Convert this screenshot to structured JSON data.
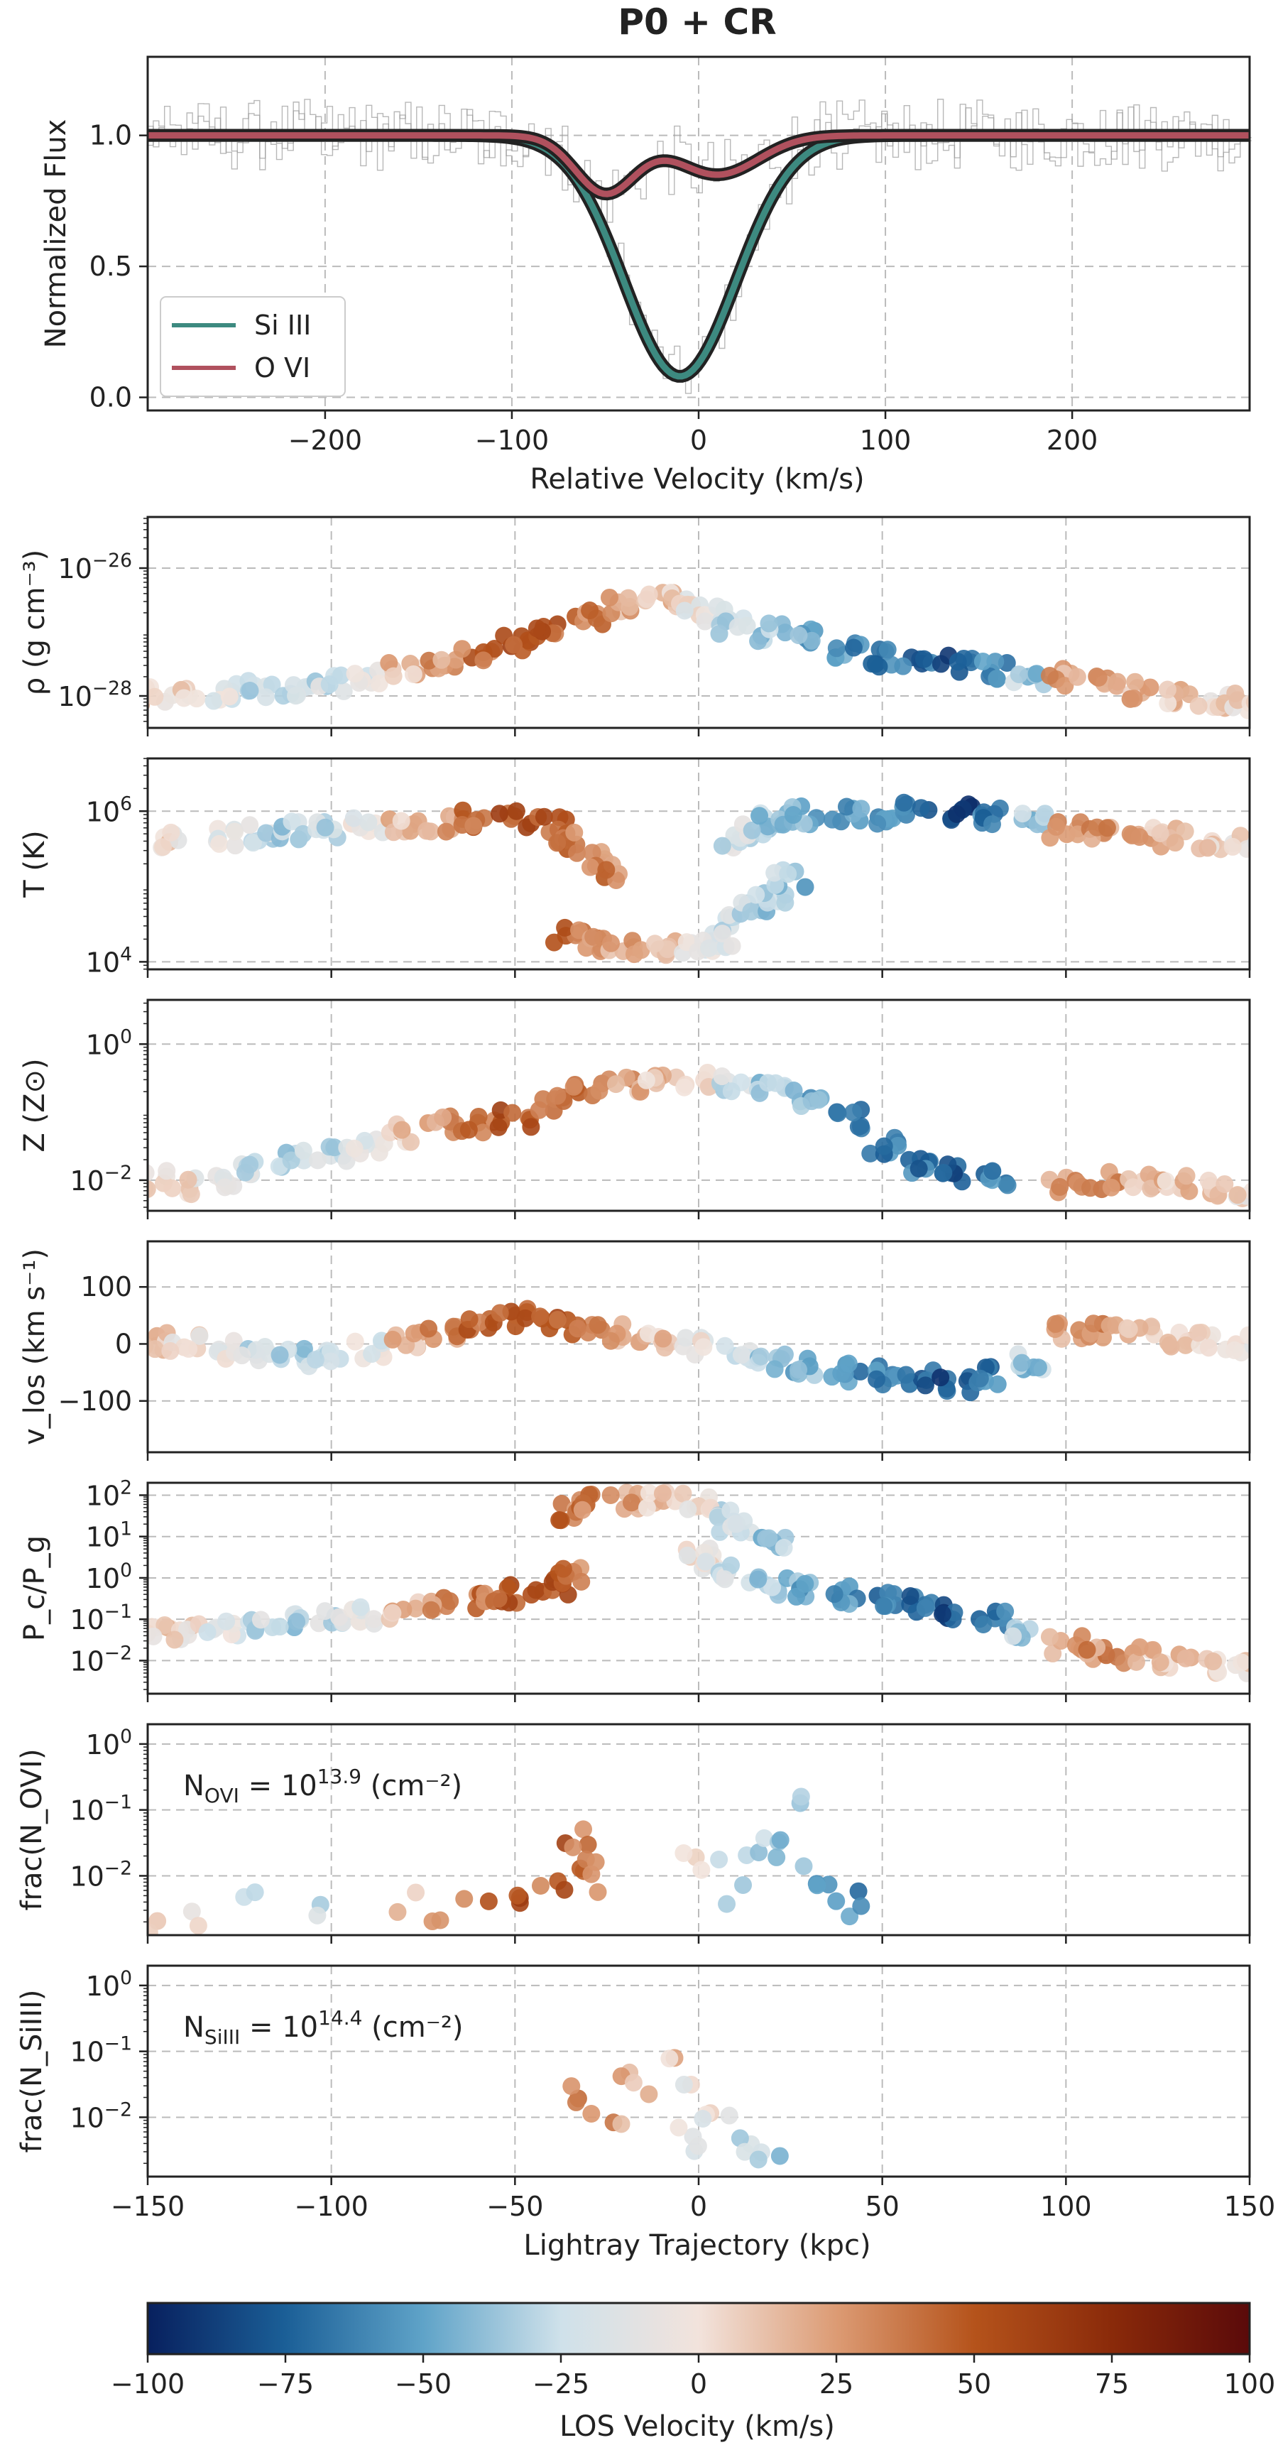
{
  "title": "P0 + CR",
  "colors": {
    "frame": "#222222",
    "grid": "#bbbbbb",
    "si_line": "#3d8a80",
    "o_line": "#b0515e",
    "data_hist": "#9a9a9a"
  },
  "chart_data": [
    {
      "id": "spectrum",
      "type": "line",
      "xlabel": "Relative Velocity (km/s)",
      "ylabel": "Normalized Flux",
      "xlim": [
        -295,
        295
      ],
      "ylim": [
        -0.05,
        1.3
      ],
      "xticks": [
        -200,
        -100,
        0,
        100,
        200
      ],
      "xtick_labels": [
        "−200",
        "−100",
        "0",
        "100",
        "200"
      ],
      "yticks": [
        0.0,
        0.5,
        1.0
      ],
      "ytick_labels": [
        "0.0",
        "0.5",
        "1.0"
      ],
      "legend": {
        "placement": "lower-left",
        "entries": [
          "Si III",
          "O VI"
        ]
      },
      "series": [
        {
          "name": "Si III",
          "color": "#3d8a80",
          "components": [
            {
              "center": -10,
              "depth": 0.92,
              "sigma": 30
            }
          ]
        },
        {
          "name": "O VI",
          "color": "#b0515e",
          "components": [
            {
              "center": -50,
              "depth": 0.22,
              "sigma": 16
            },
            {
              "center": 10,
              "depth": 0.15,
              "sigma": 22
            }
          ]
        }
      ]
    },
    {
      "id": "density",
      "type": "scatter",
      "scale": "log",
      "ylabel": "ρ (g cm⁻³)",
      "ylim_log": [
        -28.5,
        -25.2
      ],
      "yticks_log": [
        -28,
        -26
      ],
      "ytick_labels": [
        {
          "base": "10",
          "exp": "−28"
        },
        {
          "base": "10",
          "exp": "−26"
        }
      ],
      "points": [
        [
          -148,
          -28
        ],
        [
          -140,
          -28
        ],
        [
          -130,
          -27.95
        ],
        [
          -120,
          -27.9
        ],
        [
          -110,
          -27.85
        ],
        [
          -100,
          -27.8
        ],
        [
          -90,
          -27.7
        ],
        [
          -80,
          -27.6
        ],
        [
          -70,
          -27.5
        ],
        [
          -60,
          -27.4
        ],
        [
          -50,
          -27.2
        ],
        [
          -40,
          -27
        ],
        [
          -30,
          -26.8
        ],
        [
          -20,
          -26.6
        ],
        [
          -10,
          -26.5
        ],
        [
          -5,
          -26.5
        ],
        [
          0,
          -26.6
        ],
        [
          5,
          -26.7
        ],
        [
          10,
          -26.9
        ],
        [
          20,
          -27
        ],
        [
          30,
          -27.1
        ],
        [
          40,
          -27.3
        ],
        [
          50,
          -27.4
        ],
        [
          60,
          -27.4
        ],
        [
          70,
          -27.5
        ],
        [
          80,
          -27.6
        ],
        [
          90,
          -27.7
        ],
        [
          100,
          -27.7
        ],
        [
          110,
          -27.8
        ],
        [
          120,
          -27.9
        ],
        [
          130,
          -28
        ],
        [
          140,
          -28.05
        ],
        [
          148,
          -28.1
        ]
      ]
    },
    {
      "id": "temperature",
      "type": "scatter",
      "scale": "log",
      "ylabel": "T (K)",
      "ylim_log": [
        3.9,
        6.7
      ],
      "yticks_log": [
        4,
        6
      ],
      "ytick_labels": [
        {
          "base": "10",
          "exp": "4"
        },
        {
          "base": "10",
          "exp": "6"
        }
      ],
      "points": [
        [
          -145,
          5.6
        ],
        [
          -130,
          5.65
        ],
        [
          -120,
          5.7
        ],
        [
          -110,
          5.75
        ],
        [
          -100,
          5.75
        ],
        [
          -90,
          5.8
        ],
        [
          -80,
          5.8
        ],
        [
          -70,
          5.85
        ],
        [
          -60,
          5.9
        ],
        [
          -50,
          5.9
        ],
        [
          -40,
          5.8
        ],
        [
          -35,
          5.6
        ],
        [
          -30,
          5.4
        ],
        [
          -25,
          5.2
        ],
        [
          -35,
          4.35
        ],
        [
          -30,
          4.25
        ],
        [
          -20,
          4.2
        ],
        [
          -10,
          4.15
        ],
        [
          0,
          4.2
        ],
        [
          5,
          4.25
        ],
        [
          10,
          4.5
        ],
        [
          15,
          4.7
        ],
        [
          20,
          4.9
        ],
        [
          25,
          5.1
        ],
        [
          10,
          5.6
        ],
        [
          15,
          5.8
        ],
        [
          20,
          5.9
        ],
        [
          30,
          5.95
        ],
        [
          40,
          5.95
        ],
        [
          50,
          5.95
        ],
        [
          60,
          6
        ],
        [
          70,
          6
        ],
        [
          80,
          5.95
        ],
        [
          90,
          5.9
        ],
        [
          100,
          5.75
        ],
        [
          110,
          5.7
        ],
        [
          120,
          5.7
        ],
        [
          130,
          5.65
        ],
        [
          140,
          5.6
        ],
        [
          148,
          5.55
        ]
      ]
    },
    {
      "id": "metallicity",
      "type": "scatter",
      "scale": "log",
      "ylabel": "Z (Z⊙)",
      "ylim_log": [
        -2.45,
        0.65
      ],
      "yticks_log": [
        -2,
        0
      ],
      "ytick_labels": [
        {
          "base": "10",
          "exp": "−2"
        },
        {
          "base": "10",
          "exp": "0"
        }
      ],
      "points": [
        [
          -148,
          -2
        ],
        [
          -140,
          -2.1
        ],
        [
          -130,
          -2
        ],
        [
          -120,
          -1.8
        ],
        [
          -110,
          -1.7
        ],
        [
          -100,
          -1.6
        ],
        [
          -90,
          -1.5
        ],
        [
          -80,
          -1.3
        ],
        [
          -70,
          -1.2
        ],
        [
          -60,
          -1.2
        ],
        [
          -50,
          -1.1
        ],
        [
          -40,
          -0.9
        ],
        [
          -30,
          -0.7
        ],
        [
          -20,
          -0.6
        ],
        [
          -10,
          -0.5
        ],
        [
          0,
          -0.5
        ],
        [
          10,
          -0.6
        ],
        [
          20,
          -0.7
        ],
        [
          30,
          -0.8
        ],
        [
          40,
          -1.1
        ],
        [
          50,
          -1.5
        ],
        [
          60,
          -1.8
        ],
        [
          70,
          -1.9
        ],
        [
          80,
          -2
        ],
        [
          100,
          -2.1
        ],
        [
          110,
          -2
        ],
        [
          120,
          -2
        ],
        [
          130,
          -2.05
        ],
        [
          140,
          -2.1
        ],
        [
          148,
          -2.2
        ]
      ]
    },
    {
      "id": "vlos",
      "type": "scatter",
      "scale": "linear",
      "ylabel": "v_los (km s⁻¹)",
      "ylim": [
        -190,
        180
      ],
      "yticks": [
        -100,
        0,
        100
      ],
      "ytick_labels": [
        "−100",
        "0",
        "100"
      ],
      "points": [
        [
          -148,
          5
        ],
        [
          -140,
          0
        ],
        [
          -130,
          -10
        ],
        [
          -120,
          -20
        ],
        [
          -110,
          -25
        ],
        [
          -100,
          -20
        ],
        [
          -90,
          -10
        ],
        [
          -80,
          10
        ],
        [
          -70,
          25
        ],
        [
          -60,
          35
        ],
        [
          -50,
          45
        ],
        [
          -40,
          40
        ],
        [
          -30,
          30
        ],
        [
          -20,
          20
        ],
        [
          -10,
          10
        ],
        [
          0,
          -5
        ],
        [
          10,
          -20
        ],
        [
          20,
          -30
        ],
        [
          30,
          -40
        ],
        [
          40,
          -50
        ],
        [
          50,
          -55
        ],
        [
          60,
          -60
        ],
        [
          70,
          -70
        ],
        [
          80,
          -55
        ],
        [
          90,
          -30
        ],
        [
          100,
          20
        ],
        [
          110,
          25
        ],
        [
          120,
          15
        ],
        [
          130,
          10
        ],
        [
          140,
          5
        ],
        [
          148,
          0
        ]
      ]
    },
    {
      "id": "pressure_ratio",
      "type": "scatter",
      "scale": "log",
      "ylabel": "P_c/P_g",
      "ylim_log": [
        -2.8,
        2.3
      ],
      "yticks_log": [
        -2,
        -1,
        0,
        1,
        2
      ],
      "ytick_labels": [
        {
          "base": "10",
          "exp": "−2"
        },
        {
          "base": "10",
          "exp": "−1"
        },
        {
          "base": "10",
          "exp": "0"
        },
        {
          "base": "10",
          "exp": "1"
        },
        {
          "base": "10",
          "exp": "2"
        }
      ],
      "points": [
        [
          -148,
          -1.3
        ],
        [
          -140,
          -1.3
        ],
        [
          -130,
          -1.25
        ],
        [
          -120,
          -1.2
        ],
        [
          -110,
          -1.1
        ],
        [
          -100,
          -1
        ],
        [
          -90,
          -0.9
        ],
        [
          -80,
          -0.8
        ],
        [
          -70,
          -0.7
        ],
        [
          -60,
          -0.6
        ],
        [
          -50,
          -0.4
        ],
        [
          -40,
          -0.2
        ],
        [
          -35,
          0.1
        ],
        [
          -35,
          1.6
        ],
        [
          -30,
          1.8
        ],
        [
          -20,
          1.85
        ],
        [
          -10,
          1.9
        ],
        [
          0,
          1.85
        ],
        [
          5,
          1.5
        ],
        [
          10,
          1.2
        ],
        [
          20,
          0.9
        ],
        [
          0,
          0.5
        ],
        [
          5,
          0.2
        ],
        [
          10,
          0.1
        ],
        [
          20,
          -0.2
        ],
        [
          30,
          -0.3
        ],
        [
          40,
          -0.4
        ],
        [
          50,
          -0.5
        ],
        [
          60,
          -0.6
        ],
        [
          70,
          -0.8
        ],
        [
          80,
          -1
        ],
        [
          90,
          -1.3
        ],
        [
          100,
          -1.6
        ],
        [
          110,
          -1.8
        ],
        [
          120,
          -1.9
        ],
        [
          130,
          -2
        ],
        [
          140,
          -2.1
        ],
        [
          148,
          -2.2
        ]
      ]
    },
    {
      "id": "frac_ovi",
      "type": "scatter",
      "scale": "log",
      "ylabel": "frac(N_OVI)",
      "ylim_log": [
        -2.9,
        0.3
      ],
      "yticks_log": [
        -2,
        -1,
        0
      ],
      "ytick_labels": [
        {
          "base": "10",
          "exp": "−2"
        },
        {
          "base": "10",
          "exp": "−1"
        },
        {
          "base": "10",
          "exp": "0"
        }
      ],
      "annotation": {
        "prefix": "N",
        "sub": "OVI",
        "eq": " = 10",
        "exp": "13.9",
        "unit": " (cm⁻²)"
      },
      "points": [
        [
          -148,
          -2.7
        ],
        [
          -135,
          -2.6
        ],
        [
          -120,
          -2.4
        ],
        [
          -100,
          -2.5
        ],
        [
          -80,
          -2.4
        ],
        [
          -70,
          -2.6
        ],
        [
          -60,
          -2.5
        ],
        [
          -50,
          -2.45
        ],
        [
          -45,
          -2.2
        ],
        [
          -40,
          -2.1
        ],
        [
          -35,
          -1.8
        ],
        [
          -32,
          -1.4
        ],
        [
          -30,
          -1.5
        ],
        [
          -28,
          -1.9
        ],
        [
          -25,
          -2.1
        ],
        [
          0,
          -1.6
        ],
        [
          5,
          -1.9
        ],
        [
          10,
          -2.3
        ],
        [
          15,
          -1.7
        ],
        [
          20,
          -1.4
        ],
        [
          25,
          -1.6
        ],
        [
          28,
          -0.8
        ],
        [
          30,
          -2
        ],
        [
          35,
          -2.2
        ],
        [
          40,
          -2.3
        ],
        [
          45,
          -2.6
        ]
      ]
    },
    {
      "id": "frac_siiii",
      "type": "scatter",
      "scale": "log",
      "ylabel": "frac(N_SiIII)",
      "ylim_log": [
        -2.9,
        0.3
      ],
      "yticks_log": [
        -2,
        -1,
        0
      ],
      "ytick_labels": [
        {
          "base": "10",
          "exp": "−2"
        },
        {
          "base": "10",
          "exp": "−1"
        },
        {
          "base": "10",
          "exp": "0"
        }
      ],
      "xlabel": "Lightray Trajectory (kpc)",
      "annotation": {
        "prefix": "N",
        "sub": "SiIII",
        "eq": " = 10",
        "exp": "14.4",
        "unit": " (cm⁻²)"
      },
      "points": [
        [
          -35,
          -1.6
        ],
        [
          -30,
          -1.9
        ],
        [
          -25,
          -2.2
        ],
        [
          -20,
          -1.3
        ],
        [
          -15,
          -1.6
        ],
        [
          -10,
          -1.2
        ],
        [
          -5,
          -1.4
        ],
        [
          -5,
          -2.3
        ],
        [
          0,
          -1.8
        ],
        [
          0,
          -2.5
        ],
        [
          5,
          -2
        ],
        [
          10,
          -2.3
        ],
        [
          15,
          -2.5
        ],
        [
          20,
          -2.6
        ]
      ]
    }
  ],
  "shared_x": {
    "xlim": [
      -150,
      150
    ],
    "xticks": [
      -150,
      -100,
      -50,
      0,
      50,
      100,
      150
    ],
    "xtick_labels": [
      "−150",
      "−100",
      "−50",
      "0",
      "50",
      "100",
      "150"
    ],
    "xlabel": "Lightray Trajectory (kpc)"
  },
  "colorbar": {
    "label": "LOS Velocity (km/s)",
    "range": [
      -100,
      100
    ],
    "ticks": [
      -100,
      -75,
      -50,
      -25,
      0,
      25,
      50,
      75,
      100
    ],
    "tick_labels": [
      "−100",
      "−75",
      "−50",
      "−25",
      "0",
      "25",
      "50",
      "75",
      "100"
    ],
    "colormap": [
      "#08205e",
      "#1b5f97",
      "#5fa3c8",
      "#cfe1ea",
      "#f2e3dc",
      "#dc9b74",
      "#b5531b",
      "#8a2a0a",
      "#5a0a0a"
    ]
  }
}
